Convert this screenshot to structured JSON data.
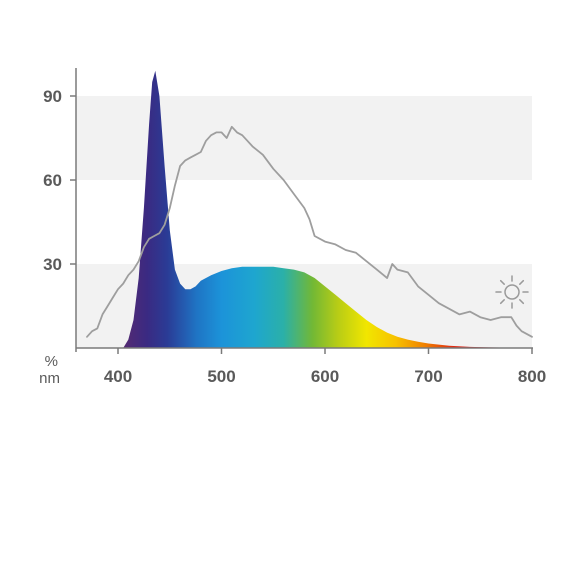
{
  "chart_data": {
    "type": "area",
    "title": "",
    "xlabel": "nm",
    "ylabel": "%",
    "xlim": [
      365,
      800
    ],
    "ylim": [
      0,
      100
    ],
    "grid": "alternating horizontal bands",
    "x_ticks": [
      400,
      500,
      600,
      700,
      800
    ],
    "y_ticks": [
      30,
      60,
      90
    ],
    "bands": [
      [
        0,
        30
      ],
      [
        60,
        90
      ]
    ],
    "band_color": "#f2f2f2",
    "axis_color": "#7a7a7a",
    "sun_icon": "sun-icon",
    "series": [
      {
        "type": "area",
        "fill": "visible-spectrum-gradient",
        "x": [
          405,
          410,
          415,
          420,
          425,
          430,
          433,
          436,
          440,
          445,
          450,
          455,
          460,
          465,
          470,
          475,
          480,
          490,
          500,
          510,
          520,
          530,
          540,
          550,
          560,
          570,
          580,
          590,
          600,
          610,
          620,
          630,
          640,
          650,
          660,
          670,
          680,
          690,
          700,
          710,
          720,
          740,
          760,
          780,
          800
        ],
        "values": [
          0,
          3,
          10,
          25,
          50,
          80,
          95,
          99,
          90,
          65,
          42,
          28,
          23,
          21,
          21,
          22,
          24,
          26,
          27.5,
          28.5,
          29,
          29,
          29,
          29,
          28.5,
          28,
          27,
          25,
          22,
          19,
          16,
          13,
          10,
          7.5,
          5.5,
          4,
          3,
          2.2,
          1.6,
          1.2,
          0.8,
          0.4,
          0.2,
          0.1,
          0
        ]
      },
      {
        "type": "line",
        "color": "#9e9e9e",
        "x": [
          370,
          375,
          380,
          385,
          390,
          395,
          400,
          405,
          410,
          415,
          420,
          425,
          430,
          435,
          440,
          445,
          450,
          455,
          460,
          465,
          470,
          475,
          480,
          485,
          490,
          495,
          500,
          505,
          510,
          515,
          520,
          525,
          530,
          540,
          550,
          560,
          570,
          580,
          585,
          590,
          600,
          610,
          620,
          630,
          640,
          650,
          660,
          665,
          670,
          680,
          690,
          700,
          710,
          720,
          730,
          740,
          750,
          760,
          770,
          780,
          785,
          790,
          800
        ],
        "values": [
          4,
          6,
          7,
          12,
          15,
          18,
          21,
          23,
          26,
          28,
          31,
          36,
          39,
          40,
          41,
          44,
          50,
          58,
          65,
          67,
          68,
          69,
          70,
          74,
          76,
          77,
          77,
          75,
          79,
          77,
          76,
          74,
          72,
          69,
          64,
          60,
          55,
          50,
          46,
          40,
          38,
          37,
          35,
          34,
          31,
          28,
          25,
          30,
          28,
          27,
          22,
          19,
          16,
          14,
          12,
          13,
          11,
          10,
          11,
          11,
          8,
          6,
          4
        ]
      }
    ]
  }
}
